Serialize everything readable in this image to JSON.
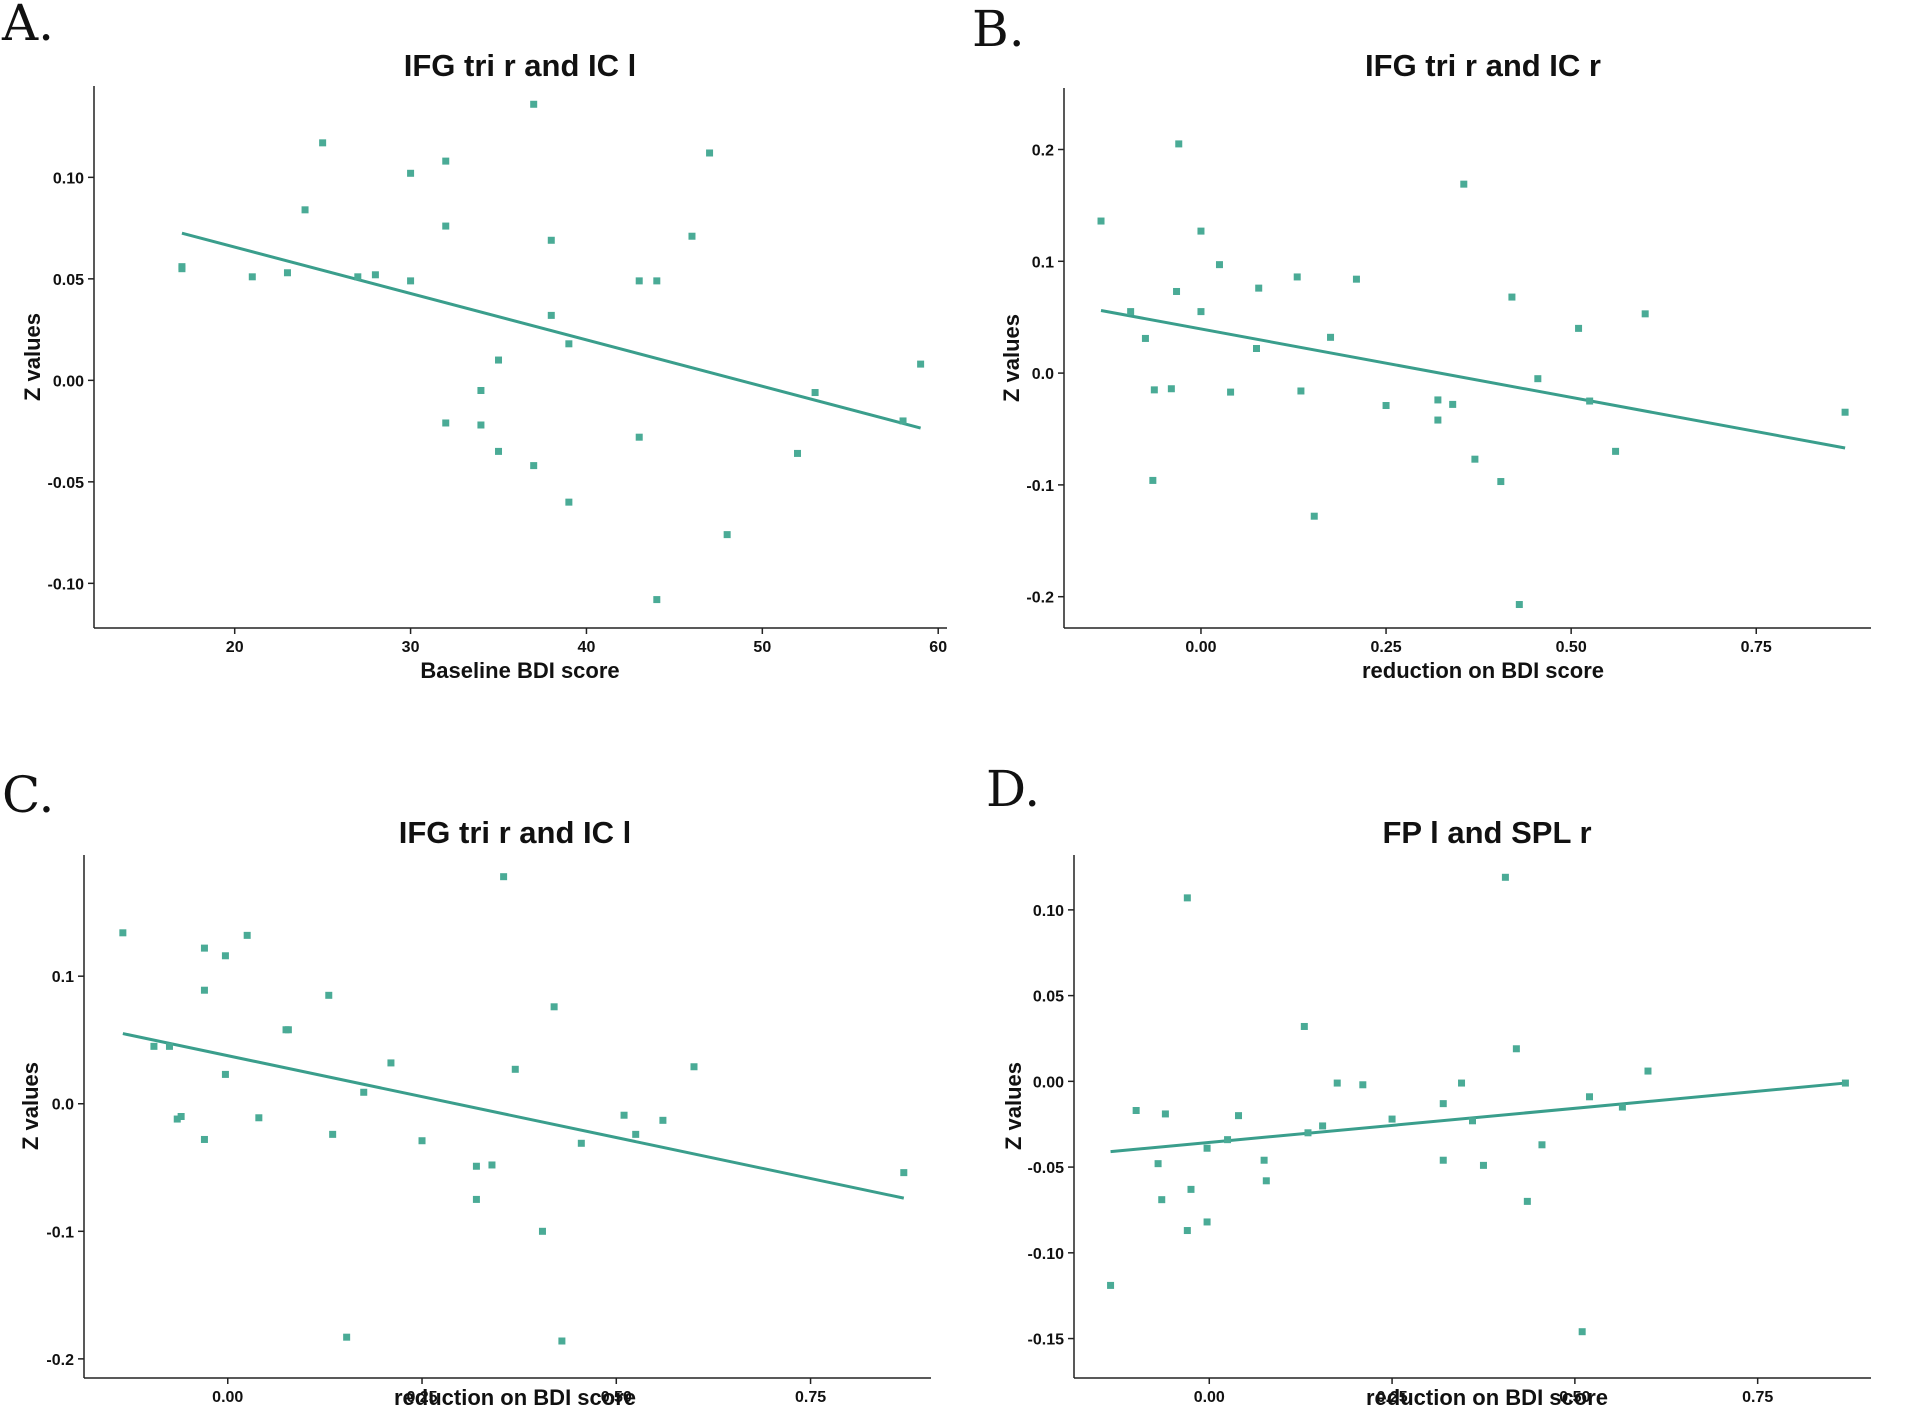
{
  "chart_data": [
    {
      "panel": "A.",
      "type": "scatter",
      "title": "IFG tri r and IC l",
      "xlabel": "Baseline BDI score",
      "ylabel": "Z values",
      "xlim": [
        12,
        60.5
      ],
      "ylim": [
        -0.122,
        0.145
      ],
      "xticks": [
        20,
        30,
        40,
        50,
        60
      ],
      "xtick_labels": [
        "20",
        "30",
        "40",
        "50",
        "60"
      ],
      "yticks": [
        -0.1,
        -0.05,
        0.0,
        0.05,
        0.1
      ],
      "ytick_labels": [
        "-0.10",
        "-0.05",
        "0.00",
        "0.05",
        "0.10"
      ],
      "points": [
        [
          17,
          0.055
        ],
        [
          17,
          0.056
        ],
        [
          21,
          0.051
        ],
        [
          23,
          0.053
        ],
        [
          24,
          0.084
        ],
        [
          25,
          0.117
        ],
        [
          27,
          0.051
        ],
        [
          28,
          0.052
        ],
        [
          30,
          0.102
        ],
        [
          30,
          0.049
        ],
        [
          32,
          0.108
        ],
        [
          32,
          0.076
        ],
        [
          32,
          -0.021
        ],
        [
          34,
          -0.005
        ],
        [
          34,
          -0.022
        ],
        [
          35,
          0.01
        ],
        [
          35,
          -0.035
        ],
        [
          37,
          0.136
        ],
        [
          37,
          -0.042
        ],
        [
          38,
          0.069
        ],
        [
          38,
          0.032
        ],
        [
          39,
          0.018
        ],
        [
          39,
          -0.06
        ],
        [
          43,
          0.049
        ],
        [
          43,
          -0.028
        ],
        [
          44,
          0.049
        ],
        [
          44,
          -0.108
        ],
        [
          46,
          0.071
        ],
        [
          47,
          0.112
        ],
        [
          48,
          -0.076
        ],
        [
          52,
          -0.036
        ],
        [
          53,
          -0.006
        ],
        [
          58,
          -0.02
        ],
        [
          59,
          0.008
        ]
      ],
      "fit_line": [
        [
          17,
          0.0725
        ],
        [
          59,
          -0.0235
        ]
      ],
      "color": "#4aab96"
    },
    {
      "panel": "B.",
      "type": "scatter",
      "title": "IFG tri r and IC r",
      "xlabel": "reduction on BDI score",
      "ylabel": "Z values",
      "xlim": [
        -0.185,
        0.905
      ],
      "ylim": [
        -0.228,
        0.255
      ],
      "xticks": [
        0.0,
        0.25,
        0.5,
        0.75
      ],
      "xtick_labels": [
        "0.00",
        "0.25",
        "0.50",
        "0.75"
      ],
      "yticks": [
        -0.2,
        -0.1,
        0.0,
        0.1,
        0.2
      ],
      "ytick_labels": [
        "-0.2",
        "-0.1",
        "0.0",
        "0.1",
        "0.2"
      ],
      "points": [
        [
          -0.135,
          0.136
        ],
        [
          -0.095,
          0.055
        ],
        [
          -0.075,
          0.031
        ],
        [
          -0.065,
          -0.096
        ],
        [
          -0.063,
          -0.015
        ],
        [
          -0.03,
          0.205
        ],
        [
          -0.033,
          0.073
        ],
        [
          -0.04,
          -0.014
        ],
        [
          0,
          0.127
        ],
        [
          0,
          0.055
        ],
        [
          0.025,
          0.097
        ],
        [
          0.04,
          -0.017
        ],
        [
          0.075,
          0.022
        ],
        [
          0.078,
          0.076
        ],
        [
          0.13,
          0.086
        ],
        [
          0.135,
          -0.016
        ],
        [
          0.153,
          -0.128
        ],
        [
          0.175,
          0.032
        ],
        [
          0.21,
          0.084
        ],
        [
          0.25,
          -0.029
        ],
        [
          0.32,
          -0.024
        ],
        [
          0.32,
          -0.042
        ],
        [
          0.34,
          -0.028
        ],
        [
          0.355,
          0.169
        ],
        [
          0.37,
          -0.077
        ],
        [
          0.405,
          -0.097
        ],
        [
          0.42,
          0.068
        ],
        [
          0.43,
          -0.207
        ],
        [
          0.455,
          -0.005
        ],
        [
          0.51,
          0.04
        ],
        [
          0.525,
          -0.025
        ],
        [
          0.56,
          -0.07
        ],
        [
          0.6,
          0.053
        ],
        [
          0.87,
          -0.035
        ]
      ],
      "fit_line": [
        [
          -0.135,
          0.056
        ],
        [
          0.87,
          -0.067
        ]
      ],
      "color": "#4aab96"
    },
    {
      "panel": "C.",
      "type": "scatter",
      "title": "IFG tri r and IC l",
      "xlabel": "reduction on BDI score",
      "ylabel": "Z values",
      "xlim": [
        -0.185,
        0.905
      ],
      "ylim": [
        -0.215,
        0.195
      ],
      "xticks": [
        0.0,
        0.25,
        0.5,
        0.75
      ],
      "xtick_labels": [
        "0.00",
        "0.25",
        "0.50",
        "0.75"
      ],
      "yticks": [
        -0.2,
        -0.1,
        0.0,
        0.1
      ],
      "ytick_labels": [
        "-0.2",
        "-0.1",
        "0.0",
        "0.1"
      ],
      "points": [
        [
          -0.135,
          0.134
        ],
        [
          -0.095,
          0.045
        ],
        [
          -0.075,
          0.045
        ],
        [
          -0.065,
          -0.012
        ],
        [
          -0.06,
          -0.01
        ],
        [
          -0.03,
          0.122
        ],
        [
          -0.03,
          0.089
        ],
        [
          -0.03,
          -0.028
        ],
        [
          -0.003,
          0.116
        ],
        [
          -0.003,
          0.023
        ],
        [
          0.025,
          0.132
        ],
        [
          0.04,
          -0.011
        ],
        [
          0.075,
          0.058
        ],
        [
          0.078,
          0.058
        ],
        [
          0.13,
          0.085
        ],
        [
          0.135,
          -0.024
        ],
        [
          0.153,
          -0.183
        ],
        [
          0.175,
          0.009
        ],
        [
          0.21,
          0.032
        ],
        [
          0.25,
          -0.029
        ],
        [
          0.32,
          -0.049
        ],
        [
          0.32,
          -0.075
        ],
        [
          0.34,
          -0.048
        ],
        [
          0.355,
          0.178
        ],
        [
          0.37,
          0.027
        ],
        [
          0.405,
          -0.1
        ],
        [
          0.42,
          0.076
        ],
        [
          0.43,
          -0.186
        ],
        [
          0.455,
          -0.031
        ],
        [
          0.51,
          -0.009
        ],
        [
          0.525,
          -0.024
        ],
        [
          0.56,
          -0.013
        ],
        [
          0.6,
          0.029
        ],
        [
          0.87,
          -0.054
        ]
      ],
      "fit_line": [
        [
          -0.135,
          0.055
        ],
        [
          0.87,
          -0.074
        ]
      ],
      "color": "#4aab96"
    },
    {
      "panel": "D.",
      "type": "scatter",
      "title": "FP l and SPL r",
      "xlabel": "reduction on BDI score",
      "ylabel": "Z values",
      "xlim": [
        -0.185,
        0.905
      ],
      "ylim": [
        -0.173,
        0.132
      ],
      "xticks": [
        0.0,
        0.25,
        0.5,
        0.75
      ],
      "xtick_labels": [
        "0.00",
        "0.25",
        "0.50",
        "0.75"
      ],
      "yticks": [
        -0.15,
        -0.1,
        -0.05,
        0.0,
        0.05,
        0.1
      ],
      "ytick_labels": [
        "-0.15",
        "-0.10",
        "-0.05",
        "0.00",
        "0.05",
        "0.10"
      ],
      "points": [
        [
          -0.135,
          -0.119
        ],
        [
          -0.1,
          -0.017
        ],
        [
          -0.07,
          -0.048
        ],
        [
          -0.065,
          -0.069
        ],
        [
          -0.06,
          -0.019
        ],
        [
          -0.03,
          0.107
        ],
        [
          -0.03,
          -0.087
        ],
        [
          -0.025,
          -0.063
        ],
        [
          -0.003,
          -0.039
        ],
        [
          -0.003,
          -0.082
        ],
        [
          0.025,
          -0.034
        ],
        [
          0.04,
          -0.02
        ],
        [
          0.075,
          -0.046
        ],
        [
          0.078,
          -0.058
        ],
        [
          0.13,
          0.032
        ],
        [
          0.135,
          -0.03
        ],
        [
          0.155,
          -0.026
        ],
        [
          0.175,
          -0.001
        ],
        [
          0.21,
          -0.002
        ],
        [
          0.25,
          -0.022
        ],
        [
          0.32,
          -0.013
        ],
        [
          0.32,
          -0.046
        ],
        [
          0.345,
          -0.001
        ],
        [
          0.36,
          -0.023
        ],
        [
          0.375,
          -0.049
        ],
        [
          0.405,
          0.119
        ],
        [
          0.42,
          0.019
        ],
        [
          0.435,
          -0.07
        ],
        [
          0.455,
          -0.037
        ],
        [
          0.51,
          -0.146
        ],
        [
          0.52,
          -0.009
        ],
        [
          0.565,
          -0.015
        ],
        [
          0.6,
          0.006
        ],
        [
          0.87,
          -0.001
        ]
      ],
      "fit_line": [
        [
          -0.135,
          -0.041
        ],
        [
          0.87,
          -0.001
        ]
      ],
      "color": "#4aab96"
    }
  ]
}
